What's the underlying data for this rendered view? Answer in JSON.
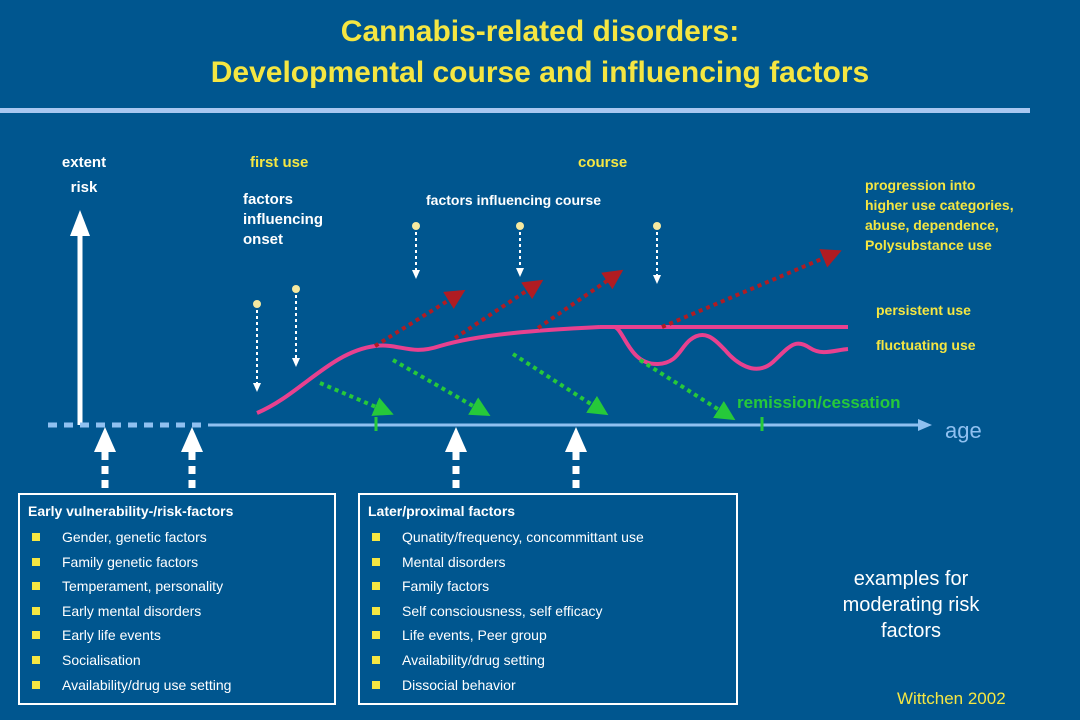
{
  "title": {
    "line1": "Cannabis-related disorders:",
    "line2": "Developmental course and influencing factors"
  },
  "labels": {
    "extent": "extent",
    "risk": "risk",
    "first_use": "first use",
    "course": "course",
    "factors_onset": [
      "factors",
      "influencing",
      "onset"
    ],
    "factors_course": "factors influencing course",
    "progression": [
      "progression into",
      "higher use categories,",
      "abuse, dependence,",
      "Polysubstance use"
    ],
    "persistent": "persistent use",
    "fluctuating": "fluctuating use",
    "remission": "remission/cessation",
    "age": "age"
  },
  "early_factors": {
    "title": "Early vulnerability-/risk-factors",
    "items": [
      "Gender, genetic factors",
      "Family genetic factors",
      "Temperament, personality",
      "Early mental disorders",
      "Early life events",
      "Socialisation",
      "Availability/drug use setting"
    ]
  },
  "later_factors": {
    "title": "Later/proximal factors",
    "items": [
      "Qunatity/frequency, concommittant use",
      "Mental disorders",
      "Family factors",
      "Self consciousness, self efficacy",
      "Life events, Peer group",
      "Availability/drug setting",
      "Dissocial behavior"
    ]
  },
  "examples": [
    "examples for",
    "moderating risk",
    "factors"
  ],
  "citation": "Wittchen 2002",
  "colors": {
    "background": "#00568f",
    "title": "#f5e642",
    "curve": "#e8418f",
    "red_arrow": "#b01c22",
    "green_arrow": "#26c93a",
    "age_axis": "#8fc0f0"
  }
}
